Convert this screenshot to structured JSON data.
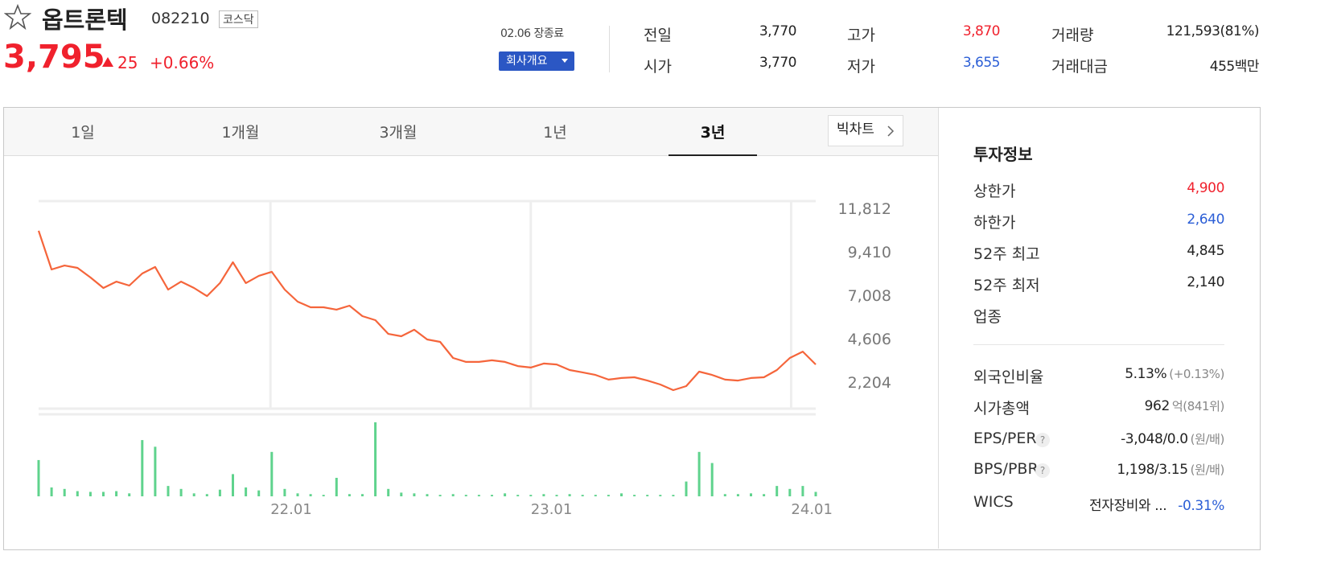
{
  "header": {
    "name": "옵트론텍",
    "code": "082210",
    "market": "코스닥",
    "price": "3,795",
    "change": "25",
    "change_pct": "+0.66%",
    "date": "02.06 장종료",
    "company_button": "회사개요"
  },
  "stats": [
    {
      "label": "전일",
      "value": "3,770"
    },
    {
      "label": "시가",
      "value": "3,770"
    },
    {
      "label": "고가",
      "value": "3,870",
      "color": "red"
    },
    {
      "label": "저가",
      "value": "3,655",
      "color": "blue"
    },
    {
      "label": "거래량",
      "value": "121,593(81%)"
    },
    {
      "label": "거래대금",
      "value": "455",
      "unit": "백만"
    }
  ],
  "tabs": [
    "1일",
    "1개월",
    "3개월",
    "1년",
    "3년"
  ],
  "active_tab": 4,
  "big_chart": "빅차트",
  "chart_data": {
    "type": "line",
    "color": "#f5653b",
    "values": [
      10570,
      8430,
      8650,
      8520,
      7990,
      7410,
      7760,
      7540,
      8210,
      8570,
      7320,
      7760,
      7410,
      6960,
      7680,
      8830,
      7680,
      8080,
      8300,
      7320,
      6650,
      6340,
      6340,
      6210,
      6430,
      5850,
      5630,
      4870,
      4740,
      5100,
      4560,
      4430,
      3540,
      3320,
      3320,
      3410,
      3320,
      3090,
      3010,
      3230,
      3180,
      2870,
      2740,
      2600,
      2340,
      2430,
      2470,
      2290,
      2070,
      1760,
      1980,
      2780,
      2600,
      2340,
      2290,
      2430,
      2470,
      2870,
      3540,
      3890,
      3180
    ],
    "xlim": [
      0,
      60
    ],
    "xticks": [
      {
        "value": 17.9,
        "label": "22.01"
      },
      {
        "value": 38.0,
        "label": "23.01"
      },
      {
        "value": 58.1,
        "label": "24.01"
      }
    ],
    "ylim": [
      736,
      12212
    ],
    "yticks": [
      {
        "value": 11812,
        "label": "11,812"
      },
      {
        "value": 9410,
        "label": "9,410"
      },
      {
        "value": 7008,
        "label": "7,008"
      },
      {
        "value": 4606,
        "label": "4,606"
      },
      {
        "value": 2204,
        "label": "2,204"
      }
    ],
    "grid": "vertical",
    "volume": {
      "type": "bar",
      "color": "#5fd38d",
      "ylim": [
        0,
        100
      ],
      "values": [
        49,
        12,
        10,
        7,
        6,
        6,
        7,
        4,
        76,
        67,
        14,
        10,
        4,
        3,
        9,
        30,
        12,
        8,
        60,
        10,
        4,
        3,
        2,
        25,
        3,
        3,
        100,
        10,
        5,
        4,
        3,
        2,
        3,
        2,
        2,
        2,
        4,
        2,
        2,
        3,
        2,
        3,
        2,
        2,
        2,
        4,
        2,
        2,
        2,
        2,
        20,
        60,
        45,
        3,
        3,
        4,
        3,
        14,
        10,
        14,
        6
      ]
    }
  },
  "info": {
    "title": "투자정보",
    "rows": [
      {
        "label": "상한가",
        "value": "4,900",
        "color": "red"
      },
      {
        "label": "하한가",
        "value": "2,640",
        "color": "blue"
      },
      {
        "label": "52주 최고",
        "value": "4,845"
      },
      {
        "label": "52주 최저",
        "value": "2,140"
      },
      {
        "label": "업종"
      }
    ],
    "rows2": [
      {
        "label": "외국인비율",
        "value": "5.13%",
        "sub": "(+0.13%)"
      },
      {
        "label": "시가총액",
        "value": "962",
        "sub": "억(841위)"
      },
      {
        "label": "EPS/PER",
        "value": "-3,048/0.0",
        "sub": "(원/배)",
        "help": true
      },
      {
        "label": "BPS/PBR",
        "value": "1,198/3.15",
        "sub": "(원/배)",
        "help": true
      },
      {
        "label": "WICS",
        "value": "전자장비와 ...",
        "sub": "-0.31%",
        "subcolor": "blue"
      }
    ]
  }
}
